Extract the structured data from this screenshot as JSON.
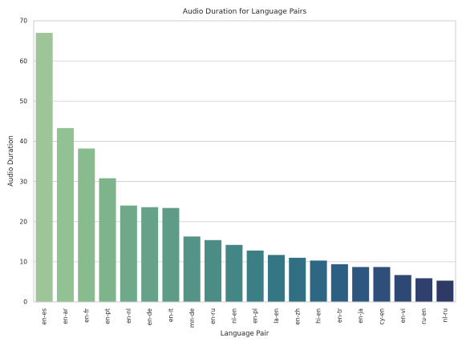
{
  "chart_data": {
    "type": "bar",
    "title": "Audio Duration for Language Pairs",
    "xlabel": "Language Pair",
    "ylabel": "Audio Duration",
    "categories": [
      "en-es",
      "en-ar",
      "en-fr",
      "en-pt",
      "en-nl",
      "en-de",
      "en-it",
      "mn-de",
      "en-ru",
      "nl-en",
      "en-pl",
      "la-en",
      "en-zh",
      "hi-en",
      "en-tr",
      "en-ja",
      "cy-en",
      "en-vi",
      "ru-en",
      "nl-ru"
    ],
    "values": [
      67.0,
      43.3,
      38.2,
      30.8,
      24.0,
      23.6,
      23.4,
      16.3,
      15.4,
      14.2,
      12.8,
      11.7,
      11.0,
      10.3,
      9.4,
      8.7,
      8.7,
      6.7,
      5.9,
      5.3
    ],
    "ylim": [
      0,
      70
    ],
    "yticks": [
      0,
      10,
      20,
      30,
      40,
      50,
      60,
      70
    ],
    "grid": true,
    "colors": [
      "#9dc598",
      "#92c193",
      "#88bc8f",
      "#7eb48c",
      "#70a98a",
      "#66a289",
      "#5e9c88",
      "#549486",
      "#4b8c85",
      "#438685",
      "#3b7e84",
      "#357684",
      "#317083",
      "#2d6783",
      "#2c5f81",
      "#2c577e",
      "#2d4f7a",
      "#2e4876",
      "#2f406f",
      "#2f3968"
    ]
  }
}
